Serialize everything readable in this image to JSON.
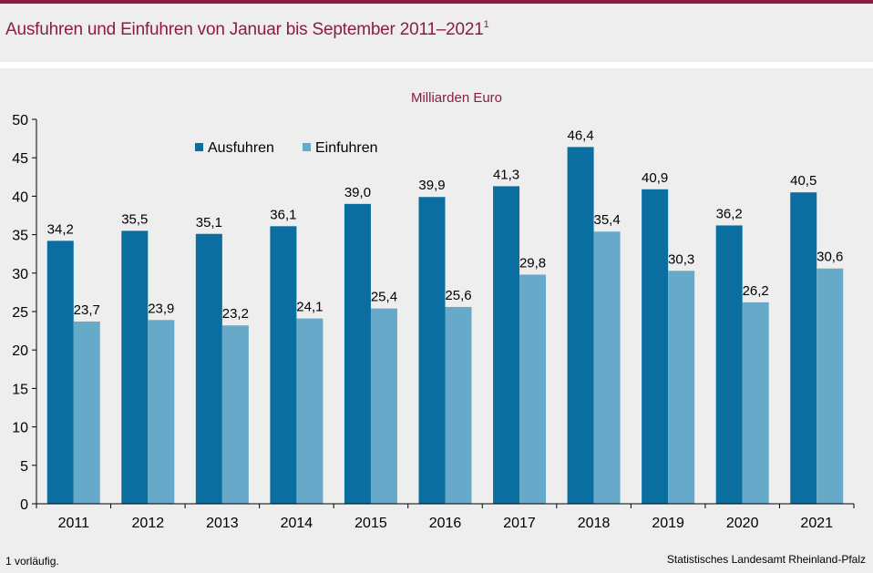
{
  "header": {
    "title": "Ausfuhren und Einfuhren von Januar bis September 2011–2021",
    "title_footnote_mark": "1"
  },
  "footer": {
    "footnote": "1 vorläufig.",
    "source": "Statistisches Landesamt Rheinland-Pfalz"
  },
  "chart_data": {
    "type": "bar",
    "unit_label": "Milliarden Euro",
    "categories": [
      "2011",
      "2012",
      "2013",
      "2014",
      "2015",
      "2016",
      "2017",
      "2018",
      "2019",
      "2020",
      "2021"
    ],
    "series": [
      {
        "name": "Ausfuhren",
        "color": "#0a6fa0",
        "values": [
          34.2,
          35.5,
          35.1,
          36.1,
          39.0,
          39.9,
          41.3,
          46.4,
          40.9,
          36.2,
          40.5
        ],
        "labels": [
          "34,2",
          "35,5",
          "35,1",
          "36,1",
          "39,0",
          "39,9",
          "41,3",
          "46,4",
          "40,9",
          "36,2",
          "40,5"
        ]
      },
      {
        "name": "Einfuhren",
        "color": "#67a9c9",
        "values": [
          23.7,
          23.9,
          23.2,
          24.1,
          25.4,
          25.6,
          29.8,
          35.4,
          30.3,
          26.2,
          30.6
        ],
        "labels": [
          "23,7",
          "23,9",
          "23,2",
          "24,1",
          "25,4",
          "25,6",
          "29,8",
          "35,4",
          "30,3",
          "26,2",
          "30,6"
        ]
      }
    ],
    "ylim": [
      0,
      50
    ],
    "yticks": [
      "0",
      "5",
      "10",
      "15",
      "20",
      "25",
      "30",
      "35",
      "40",
      "45",
      "50"
    ],
    "legend_position": "top-left",
    "grid": false
  }
}
